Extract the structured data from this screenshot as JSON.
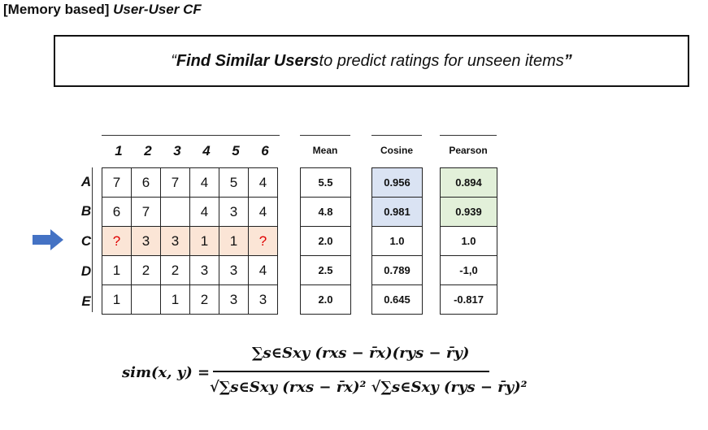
{
  "title": {
    "bracket": "[Memory based]",
    "name": "User-User CF"
  },
  "banner": {
    "quote_open": "“",
    "bold": "Find Similar Users",
    "rest": " to predict ratings for unseen items",
    "quote_close": "”"
  },
  "table": {
    "item_headers": [
      "1",
      "2",
      "3",
      "4",
      "5",
      "6"
    ],
    "user_labels": [
      "A",
      "B",
      "C",
      "D",
      "E"
    ],
    "ratings": [
      [
        "7",
        "6",
        "7",
        "4",
        "5",
        "4"
      ],
      [
        "6",
        "7",
        "",
        "4",
        "3",
        "4"
      ],
      [
        "?",
        "3",
        "3",
        "1",
        "1",
        "?"
      ],
      [
        "1",
        "2",
        "2",
        "3",
        "3",
        "4"
      ],
      [
        "1",
        "",
        "1",
        "2",
        "3",
        "3"
      ]
    ],
    "target_user": "C",
    "highlight_colors": {
      "target_row": "#fbe5d6",
      "unknown_text": "#e00000",
      "cosine": "#dae3f3",
      "pearson": "#e2f0d9"
    }
  },
  "stats": {
    "mean_header": "Mean",
    "cosine_header": "Cosine",
    "pearson_header": "Pearson",
    "mean": [
      "5.5",
      "4.8",
      "2.0",
      "2.5",
      "2.0"
    ],
    "cosine": [
      "0.956",
      "0.981",
      "1.0",
      "0.789",
      "0.645"
    ],
    "pearson": [
      "0.894",
      "0.939",
      "1.0",
      "-1,0",
      "-0.817"
    ]
  },
  "arrow": {
    "icon": "right-arrow-icon",
    "color": "#4472c4"
  },
  "formula": {
    "lhs": "sim(x, y) =",
    "numerator": "∑s∈Sxy (rxs − r̄x)(rys − r̄y)",
    "denominator": "√∑s∈Sxy (rxs − r̄x)² √∑s∈Sxy (rys − r̄y)²"
  }
}
